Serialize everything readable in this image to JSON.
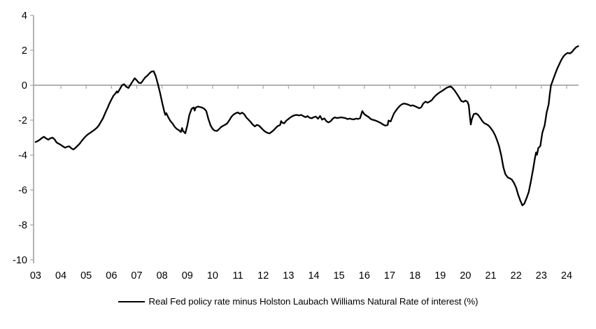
{
  "chart_data": {
    "type": "line",
    "title": "",
    "xlabel": "",
    "ylabel": "",
    "legend": "Real Fed policy rate minus Holston Laubach Williams Natural Rate of interest (%)",
    "legend_position": "bottom-center",
    "grid": "zero-line-only",
    "axis_color": "#a6a6a6",
    "line_color": "#000000",
    "text_color": "#000000",
    "ylim": [
      -10,
      4
    ],
    "xlim": [
      2002.92,
      2024.47
    ],
    "y_ticks": [
      4,
      2,
      0,
      -2,
      -4,
      -6,
      -8,
      -10
    ],
    "x_tick_years": [
      2003,
      2004,
      2005,
      2006,
      2007,
      2008,
      2009,
      2010,
      2011,
      2012,
      2013,
      2014,
      2015,
      2016,
      2017,
      2018,
      2019,
      2020,
      2021,
      2022,
      2023,
      2024
    ],
    "x_tick_labels": [
      "03",
      "04",
      "05",
      "06",
      "07",
      "08",
      "09",
      "10",
      "11",
      "12",
      "13",
      "14",
      "15",
      "16",
      "17",
      "18",
      "19",
      "20",
      "21",
      "22",
      "23",
      "24"
    ],
    "series": [
      {
        "name": "Real Fed policy rate minus Holston Laubach Williams Natural Rate of interest (%)",
        "color": "#000000",
        "points": [
          [
            2003.0,
            -3.25
          ],
          [
            2003.08,
            -3.2
          ],
          [
            2003.17,
            -3.12
          ],
          [
            2003.25,
            -3.02
          ],
          [
            2003.33,
            -2.95
          ],
          [
            2003.42,
            -3.05
          ],
          [
            2003.5,
            -3.12
          ],
          [
            2003.58,
            -3.04
          ],
          [
            2003.67,
            -3.0
          ],
          [
            2003.75,
            -3.1
          ],
          [
            2003.83,
            -3.28
          ],
          [
            2003.92,
            -3.35
          ],
          [
            2004.0,
            -3.42
          ],
          [
            2004.08,
            -3.5
          ],
          [
            2004.17,
            -3.58
          ],
          [
            2004.25,
            -3.52
          ],
          [
            2004.33,
            -3.5
          ],
          [
            2004.42,
            -3.62
          ],
          [
            2004.5,
            -3.68
          ],
          [
            2004.58,
            -3.58
          ],
          [
            2004.67,
            -3.45
          ],
          [
            2004.75,
            -3.33
          ],
          [
            2004.83,
            -3.18
          ],
          [
            2004.92,
            -3.02
          ],
          [
            2005.0,
            -2.9
          ],
          [
            2005.08,
            -2.8
          ],
          [
            2005.17,
            -2.72
          ],
          [
            2005.25,
            -2.63
          ],
          [
            2005.33,
            -2.55
          ],
          [
            2005.42,
            -2.44
          ],
          [
            2005.5,
            -2.3
          ],
          [
            2005.58,
            -2.1
          ],
          [
            2005.67,
            -1.88
          ],
          [
            2005.75,
            -1.6
          ],
          [
            2005.83,
            -1.35
          ],
          [
            2005.92,
            -1.05
          ],
          [
            2006.0,
            -0.82
          ],
          [
            2006.08,
            -0.6
          ],
          [
            2006.17,
            -0.45
          ],
          [
            2006.21,
            -0.35
          ],
          [
            2006.25,
            -0.42
          ],
          [
            2006.33,
            -0.22
          ],
          [
            2006.42,
            0.0
          ],
          [
            2006.5,
            0.06
          ],
          [
            2006.58,
            -0.08
          ],
          [
            2006.67,
            -0.16
          ],
          [
            2006.75,
            0.02
          ],
          [
            2006.83,
            0.2
          ],
          [
            2006.92,
            0.4
          ],
          [
            2007.0,
            0.28
          ],
          [
            2007.08,
            0.14
          ],
          [
            2007.17,
            0.12
          ],
          [
            2007.25,
            0.28
          ],
          [
            2007.33,
            0.44
          ],
          [
            2007.42,
            0.55
          ],
          [
            2007.5,
            0.68
          ],
          [
            2007.58,
            0.78
          ],
          [
            2007.67,
            0.8
          ],
          [
            2007.75,
            0.52
          ],
          [
            2007.83,
            0.1
          ],
          [
            2007.92,
            -0.42
          ],
          [
            2008.0,
            -0.95
          ],
          [
            2008.08,
            -1.45
          ],
          [
            2008.13,
            -1.7
          ],
          [
            2008.17,
            -1.6
          ],
          [
            2008.25,
            -1.85
          ],
          [
            2008.33,
            -2.05
          ],
          [
            2008.42,
            -2.2
          ],
          [
            2008.5,
            -2.38
          ],
          [
            2008.58,
            -2.5
          ],
          [
            2008.67,
            -2.58
          ],
          [
            2008.75,
            -2.68
          ],
          [
            2008.79,
            -2.45
          ],
          [
            2008.83,
            -2.62
          ],
          [
            2008.92,
            -2.75
          ],
          [
            2009.0,
            -2.3
          ],
          [
            2009.08,
            -1.7
          ],
          [
            2009.17,
            -1.35
          ],
          [
            2009.25,
            -1.27
          ],
          [
            2009.29,
            -1.45
          ],
          [
            2009.33,
            -1.28
          ],
          [
            2009.42,
            -1.22
          ],
          [
            2009.5,
            -1.25
          ],
          [
            2009.58,
            -1.28
          ],
          [
            2009.67,
            -1.35
          ],
          [
            2009.75,
            -1.48
          ],
          [
            2009.83,
            -1.92
          ],
          [
            2009.92,
            -2.3
          ],
          [
            2010.0,
            -2.5
          ],
          [
            2010.08,
            -2.6
          ],
          [
            2010.17,
            -2.62
          ],
          [
            2010.25,
            -2.52
          ],
          [
            2010.33,
            -2.4
          ],
          [
            2010.42,
            -2.32
          ],
          [
            2010.5,
            -2.26
          ],
          [
            2010.58,
            -2.18
          ],
          [
            2010.67,
            -1.98
          ],
          [
            2010.75,
            -1.8
          ],
          [
            2010.83,
            -1.68
          ],
          [
            2010.92,
            -1.6
          ],
          [
            2011.0,
            -1.56
          ],
          [
            2011.08,
            -1.64
          ],
          [
            2011.17,
            -1.57
          ],
          [
            2011.25,
            -1.66
          ],
          [
            2011.33,
            -1.84
          ],
          [
            2011.42,
            -1.98
          ],
          [
            2011.5,
            -2.1
          ],
          [
            2011.58,
            -2.24
          ],
          [
            2011.67,
            -2.36
          ],
          [
            2011.75,
            -2.27
          ],
          [
            2011.83,
            -2.31
          ],
          [
            2011.92,
            -2.44
          ],
          [
            2012.0,
            -2.56
          ],
          [
            2012.08,
            -2.66
          ],
          [
            2012.17,
            -2.73
          ],
          [
            2012.25,
            -2.76
          ],
          [
            2012.33,
            -2.67
          ],
          [
            2012.42,
            -2.57
          ],
          [
            2012.5,
            -2.44
          ],
          [
            2012.58,
            -2.33
          ],
          [
            2012.67,
            -2.28
          ],
          [
            2012.71,
            -2.05
          ],
          [
            2012.75,
            -2.14
          ],
          [
            2012.83,
            -2.18
          ],
          [
            2012.92,
            -2.02
          ],
          [
            2013.0,
            -1.93
          ],
          [
            2013.08,
            -1.84
          ],
          [
            2013.17,
            -1.76
          ],
          [
            2013.25,
            -1.72
          ],
          [
            2013.33,
            -1.7
          ],
          [
            2013.42,
            -1.73
          ],
          [
            2013.5,
            -1.7
          ],
          [
            2013.58,
            -1.76
          ],
          [
            2013.67,
            -1.83
          ],
          [
            2013.75,
            -1.77
          ],
          [
            2013.83,
            -1.86
          ],
          [
            2013.92,
            -1.89
          ],
          [
            2014.0,
            -1.83
          ],
          [
            2014.08,
            -1.79
          ],
          [
            2014.17,
            -1.92
          ],
          [
            2014.25,
            -1.76
          ],
          [
            2014.33,
            -1.97
          ],
          [
            2014.42,
            -1.9
          ],
          [
            2014.5,
            -2.06
          ],
          [
            2014.58,
            -2.13
          ],
          [
            2014.67,
            -2.06
          ],
          [
            2014.75,
            -1.92
          ],
          [
            2014.83,
            -1.84
          ],
          [
            2014.92,
            -1.88
          ],
          [
            2015.0,
            -1.86
          ],
          [
            2015.08,
            -1.84
          ],
          [
            2015.17,
            -1.86
          ],
          [
            2015.25,
            -1.88
          ],
          [
            2015.33,
            -1.94
          ],
          [
            2015.42,
            -1.91
          ],
          [
            2015.5,
            -1.94
          ],
          [
            2015.58,
            -1.96
          ],
          [
            2015.67,
            -1.91
          ],
          [
            2015.75,
            -1.93
          ],
          [
            2015.83,
            -1.89
          ],
          [
            2015.92,
            -1.48
          ],
          [
            2016.0,
            -1.66
          ],
          [
            2016.08,
            -1.74
          ],
          [
            2016.17,
            -1.82
          ],
          [
            2016.25,
            -1.93
          ],
          [
            2016.33,
            -1.98
          ],
          [
            2016.42,
            -2.01
          ],
          [
            2016.5,
            -2.06
          ],
          [
            2016.58,
            -2.11
          ],
          [
            2016.67,
            -2.18
          ],
          [
            2016.75,
            -2.26
          ],
          [
            2016.83,
            -2.31
          ],
          [
            2016.92,
            -2.28
          ],
          [
            2016.96,
            -2.02
          ],
          [
            2017.04,
            -2.08
          ],
          [
            2017.17,
            -1.62
          ],
          [
            2017.25,
            -1.45
          ],
          [
            2017.33,
            -1.3
          ],
          [
            2017.42,
            -1.16
          ],
          [
            2017.5,
            -1.08
          ],
          [
            2017.58,
            -1.05
          ],
          [
            2017.67,
            -1.08
          ],
          [
            2017.75,
            -1.12
          ],
          [
            2017.83,
            -1.18
          ],
          [
            2017.92,
            -1.15
          ],
          [
            2018.0,
            -1.2
          ],
          [
            2018.08,
            -1.25
          ],
          [
            2018.17,
            -1.32
          ],
          [
            2018.25,
            -1.26
          ],
          [
            2018.33,
            -1.05
          ],
          [
            2018.42,
            -0.94
          ],
          [
            2018.5,
            -1.0
          ],
          [
            2018.58,
            -0.94
          ],
          [
            2018.67,
            -0.85
          ],
          [
            2018.75,
            -0.7
          ],
          [
            2018.83,
            -0.58
          ],
          [
            2018.92,
            -0.47
          ],
          [
            2019.0,
            -0.39
          ],
          [
            2019.08,
            -0.32
          ],
          [
            2019.17,
            -0.23
          ],
          [
            2019.25,
            -0.15
          ],
          [
            2019.33,
            -0.1
          ],
          [
            2019.42,
            -0.07
          ],
          [
            2019.5,
            -0.18
          ],
          [
            2019.58,
            -0.32
          ],
          [
            2019.67,
            -0.52
          ],
          [
            2019.75,
            -0.7
          ],
          [
            2019.83,
            -0.9
          ],
          [
            2019.92,
            -0.95
          ],
          [
            2020.0,
            -0.88
          ],
          [
            2020.08,
            -0.95
          ],
          [
            2020.13,
            -1.15
          ],
          [
            2020.17,
            -1.75
          ],
          [
            2020.21,
            -2.25
          ],
          [
            2020.25,
            -1.95
          ],
          [
            2020.33,
            -1.65
          ],
          [
            2020.42,
            -1.62
          ],
          [
            2020.5,
            -1.7
          ],
          [
            2020.58,
            -1.86
          ],
          [
            2020.67,
            -2.06
          ],
          [
            2020.75,
            -2.18
          ],
          [
            2020.83,
            -2.23
          ],
          [
            2020.92,
            -2.32
          ],
          [
            2021.0,
            -2.46
          ],
          [
            2021.08,
            -2.62
          ],
          [
            2021.17,
            -2.86
          ],
          [
            2021.25,
            -3.15
          ],
          [
            2021.33,
            -3.5
          ],
          [
            2021.42,
            -4.05
          ],
          [
            2021.5,
            -4.7
          ],
          [
            2021.58,
            -5.1
          ],
          [
            2021.67,
            -5.28
          ],
          [
            2021.75,
            -5.33
          ],
          [
            2021.83,
            -5.4
          ],
          [
            2021.92,
            -5.6
          ],
          [
            2022.0,
            -5.85
          ],
          [
            2022.08,
            -6.25
          ],
          [
            2022.17,
            -6.62
          ],
          [
            2022.25,
            -6.88
          ],
          [
            2022.33,
            -6.78
          ],
          [
            2022.42,
            -6.45
          ],
          [
            2022.5,
            -6.12
          ],
          [
            2022.58,
            -5.55
          ],
          [
            2022.67,
            -4.85
          ],
          [
            2022.75,
            -4.15
          ],
          [
            2022.79,
            -3.85
          ],
          [
            2022.83,
            -3.98
          ],
          [
            2022.88,
            -3.6
          ],
          [
            2022.96,
            -3.48
          ],
          [
            2023.04,
            -2.72
          ],
          [
            2023.13,
            -2.3
          ],
          [
            2023.21,
            -1.55
          ],
          [
            2023.29,
            -1.1
          ],
          [
            2023.33,
            -0.55
          ],
          [
            2023.38,
            -0.02
          ],
          [
            2023.46,
            0.3
          ],
          [
            2023.54,
            0.62
          ],
          [
            2023.63,
            0.95
          ],
          [
            2023.71,
            1.2
          ],
          [
            2023.79,
            1.45
          ],
          [
            2023.88,
            1.66
          ],
          [
            2023.96,
            1.78
          ],
          [
            2024.04,
            1.85
          ],
          [
            2024.13,
            1.82
          ],
          [
            2024.21,
            1.9
          ],
          [
            2024.29,
            2.05
          ],
          [
            2024.38,
            2.18
          ],
          [
            2024.46,
            2.24
          ]
        ]
      }
    ]
  }
}
